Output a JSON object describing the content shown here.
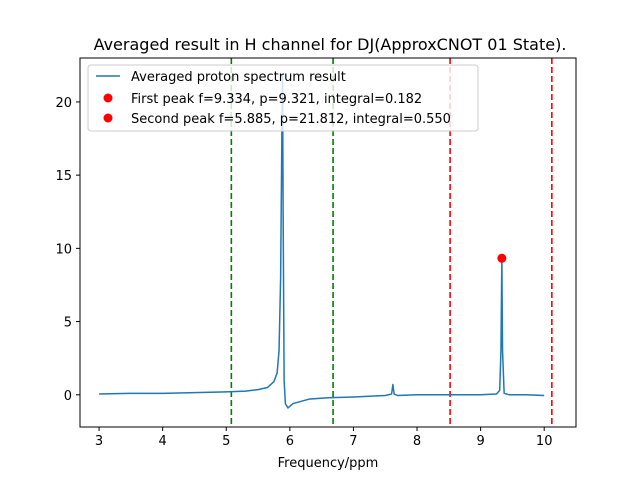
{
  "chart_data": {
    "type": "line",
    "title": "Averaged result in H channel for DJ(ApproxCNOT 01 State).",
    "xlabel": "Frequency/ppm",
    "ylabel": "",
    "xlim": [
      2.7,
      10.5
    ],
    "ylim": [
      -2.2,
      23.0
    ],
    "xticks": [
      3,
      4,
      5,
      6,
      7,
      8,
      9,
      10
    ],
    "yticks": [
      0,
      5,
      10,
      15,
      20
    ],
    "grid": false,
    "legend_position": "top-left",
    "colors": {
      "line": "#1f77b4",
      "peak_marker": "#ff0000",
      "green_vline": "#008000",
      "red_vline": "#ff0000"
    },
    "series": [
      {
        "name": "Averaged proton spectrum result",
        "x": [
          3.0,
          3.5,
          4.0,
          4.5,
          5.0,
          5.3,
          5.5,
          5.65,
          5.75,
          5.8,
          5.83,
          5.855,
          5.875,
          5.885,
          5.895,
          5.91,
          5.93,
          5.97,
          6.05,
          6.3,
          6.6,
          7.0,
          7.5,
          7.6,
          7.62,
          7.64,
          7.7,
          8.0,
          8.5,
          9.0,
          9.25,
          9.3,
          9.32,
          9.334,
          9.345,
          9.37,
          9.45,
          9.7,
          10.0
        ],
        "y": [
          0.05,
          0.1,
          0.1,
          0.15,
          0.2,
          0.25,
          0.35,
          0.5,
          0.9,
          1.5,
          3.0,
          8.0,
          18.0,
          21.812,
          12.0,
          1.0,
          -0.6,
          -0.9,
          -0.6,
          -0.3,
          -0.2,
          -0.15,
          -0.05,
          0.05,
          0.7,
          0.05,
          -0.05,
          0.0,
          0.0,
          0.0,
          0.05,
          0.3,
          3.0,
          9.321,
          3.0,
          0.1,
          0.0,
          0.0,
          -0.05
        ]
      }
    ],
    "peaks": [
      {
        "label": "First peak f=9.334, p=9.321, integral=0.182",
        "f": 9.334,
        "p": 9.321,
        "plotted": true
      },
      {
        "label": "Second peak f=5.885, p=21.812, integral=0.550",
        "f": 5.885,
        "p": 21.812,
        "plotted": false
      }
    ],
    "green_vlines": [
      5.08,
      6.68
    ],
    "red_vlines": [
      8.52,
      10.12
    ]
  }
}
